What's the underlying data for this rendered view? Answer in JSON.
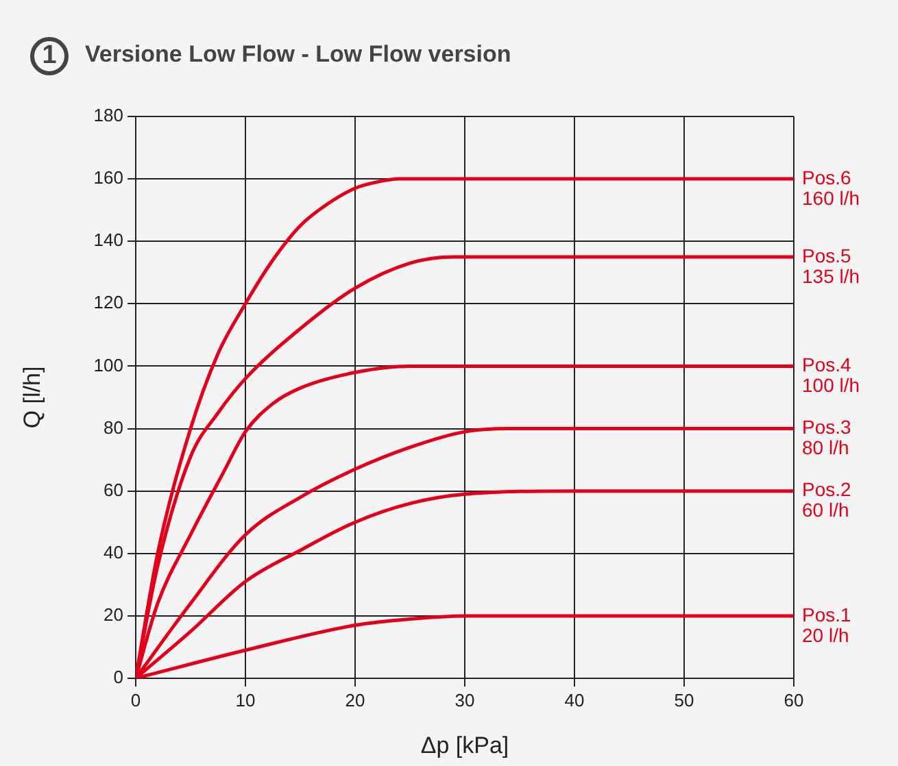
{
  "chart_data": {
    "type": "line",
    "title": "Versione Low Flow - Low Flow version",
    "xlabel": "Δp [kPa]",
    "ylabel": "Q [l/h]",
    "xlim": [
      0,
      60
    ],
    "xticks": [
      0,
      10,
      20,
      30,
      40,
      50,
      60
    ],
    "ylim": [
      0,
      180
    ],
    "yticks": [
      0,
      20,
      40,
      60,
      80,
      100,
      120,
      140,
      160,
      180
    ],
    "grid": true,
    "legend": false,
    "marker": "none",
    "line_style": "solid",
    "series": [
      {
        "name": "Pos.6",
        "color": "#e2001a",
        "x": [
          0,
          2,
          5,
          7.5,
          10,
          12.5,
          15,
          17.5,
          20,
          22,
          24,
          60
        ],
        "values": [
          0,
          40,
          80,
          104,
          120,
          134,
          145,
          152,
          157,
          159,
          160,
          160
        ]
      },
      {
        "name": "Pos.5",
        "color": "#e2001a",
        "x": [
          0,
          2,
          5,
          7.5,
          10,
          15,
          20,
          25,
          29,
          60
        ],
        "values": [
          0,
          36,
          71,
          85,
          96,
          112,
          125,
          133,
          135,
          135
        ]
      },
      {
        "name": "Pos.4",
        "color": "#e2001a",
        "x": [
          0,
          2,
          5,
          8,
          10,
          12.5,
          15,
          20,
          25,
          60
        ],
        "values": [
          0,
          24,
          46,
          66,
          79,
          88,
          93,
          98,
          100,
          100
        ]
      },
      {
        "name": "Pos.3",
        "color": "#e2001a",
        "x": [
          0,
          5,
          10,
          15,
          20,
          25,
          30,
          34,
          60
        ],
        "values": [
          0,
          24,
          46,
          58,
          67,
          74,
          79,
          80,
          80
        ]
      },
      {
        "name": "Pos.2",
        "color": "#e2001a",
        "x": [
          0,
          5,
          10,
          15,
          20,
          25,
          30,
          40,
          60
        ],
        "values": [
          0,
          15,
          31,
          41,
          50,
          56,
          59,
          60,
          60
        ]
      },
      {
        "name": "Pos.1",
        "color": "#e2001a",
        "x": [
          0,
          10,
          20,
          25,
          30,
          60
        ],
        "values": [
          0,
          9,
          17,
          19,
          20,
          20
        ]
      }
    ],
    "annotations": [
      "1",
      "160 l/h",
      "135 l/h",
      "100 l/h",
      "80 l/h",
      "60 l/h",
      "20 l/h"
    ]
  }
}
